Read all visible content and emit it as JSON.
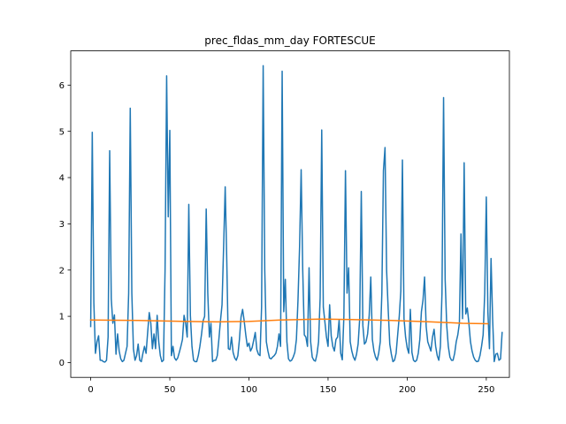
{
  "chart_data": {
    "type": "line",
    "title": "prec_fldas_mm_day FORTESCUE",
    "xlabel": "",
    "ylabel": "",
    "xlim": [
      -12.6,
      264.6
    ],
    "ylim": [
      -0.32,
      6.74
    ],
    "xticks": [
      0,
      50,
      100,
      150,
      200,
      250
    ],
    "yticks": [
      0,
      1,
      2,
      3,
      4,
      5,
      6
    ],
    "grid": false,
    "legend": "none",
    "series": [
      {
        "color": "#1f77b4",
        "x_start": 0,
        "values": [
          0.78,
          4.98,
          1.3,
          0.2,
          0.45,
          0.58,
          0.05,
          0.05,
          0.02,
          0.01,
          0.05,
          0.55,
          4.58,
          1.38,
          0.85,
          1.03,
          0.18,
          0.62,
          0.25,
          0.08,
          0.02,
          0.05,
          0.2,
          0.35,
          1.5,
          5.5,
          1.5,
          0.3,
          0.05,
          0.15,
          0.4,
          0.05,
          0.02,
          0.2,
          0.35,
          0.2,
          0.65,
          1.08,
          0.85,
          0.3,
          0.62,
          0.3,
          1.02,
          0.45,
          0.15,
          0.02,
          0.05,
          2.0,
          6.2,
          3.15,
          5.02,
          0.15,
          0.35,
          0.1,
          0.05,
          0.1,
          0.22,
          0.35,
          0.5,
          1.02,
          0.85,
          0.55,
          3.42,
          1.02,
          0.35,
          0.05,
          0.02,
          0.02,
          0.15,
          0.35,
          0.6,
          0.9,
          1.0,
          3.32,
          1.5,
          0.55,
          0.85,
          0.02,
          0.05,
          0.05,
          0.15,
          0.5,
          0.9,
          1.25,
          2.5,
          3.8,
          2.2,
          0.3,
          0.28,
          0.55,
          0.22,
          0.1,
          0.05,
          0.15,
          0.5,
          0.98,
          1.15,
          0.9,
          0.6,
          0.35,
          0.42,
          0.25,
          0.32,
          0.48,
          0.65,
          0.28,
          0.18,
          0.15,
          1.2,
          6.42,
          2.0,
          0.45,
          0.25,
          0.1,
          0.08,
          0.12,
          0.15,
          0.2,
          0.35,
          0.62,
          0.35,
          6.3,
          1.1,
          1.8,
          0.45,
          0.08,
          0.03,
          0.05,
          0.12,
          0.22,
          0.5,
          1.35,
          2.5,
          4.17,
          2.0,
          0.6,
          0.55,
          0.35,
          2.05,
          0.45,
          0.12,
          0.05,
          0.03,
          0.18,
          0.45,
          1.4,
          5.03,
          1.2,
          0.88,
          0.55,
          0.35,
          1.25,
          0.58,
          0.35,
          0.25,
          0.5,
          0.55,
          0.92,
          0.2,
          0.06,
          1.0,
          4.15,
          1.5,
          2.05,
          0.45,
          0.25,
          0.12,
          0.05,
          0.18,
          0.4,
          0.95,
          3.7,
          0.8,
          0.4,
          0.45,
          0.62,
          1.02,
          1.85,
          0.5,
          0.25,
          0.12,
          0.05,
          0.2,
          0.45,
          1.5,
          4.15,
          4.65,
          2.0,
          1.15,
          0.4,
          0.18,
          0.02,
          0.05,
          0.2,
          0.6,
          1.0,
          1.55,
          4.38,
          0.95,
          0.55,
          0.32,
          0.2,
          1.15,
          0.22,
          0.05,
          0.02,
          0.05,
          0.2,
          0.5,
          1.1,
          1.35,
          1.85,
          0.78,
          0.45,
          0.35,
          0.25,
          0.55,
          0.72,
          0.35,
          0.15,
          0.05,
          0.35,
          1.5,
          5.73,
          1.8,
          0.8,
          0.35,
          0.12,
          0.05,
          0.05,
          0.2,
          0.45,
          0.6,
          0.85,
          2.78,
          0.95,
          4.32,
          1.05,
          1.18,
          0.85,
          0.45,
          0.25,
          0.12,
          0.05,
          0.02,
          0.03,
          0.15,
          0.35,
          0.6,
          1.5,
          3.58,
          1.1,
          0.3,
          2.25,
          0.95,
          0.02,
          0.18,
          0.2,
          0.05,
          0.08,
          0.65
        ]
      },
      {
        "color": "#ff7f0e",
        "x": [
          0,
          30,
          60,
          80,
          100,
          120,
          145,
          165,
          190,
          215,
          235,
          251
        ],
        "values": [
          0.92,
          0.91,
          0.89,
          0.88,
          0.89,
          0.92,
          0.94,
          0.93,
          0.91,
          0.88,
          0.85,
          0.84
        ]
      }
    ]
  }
}
